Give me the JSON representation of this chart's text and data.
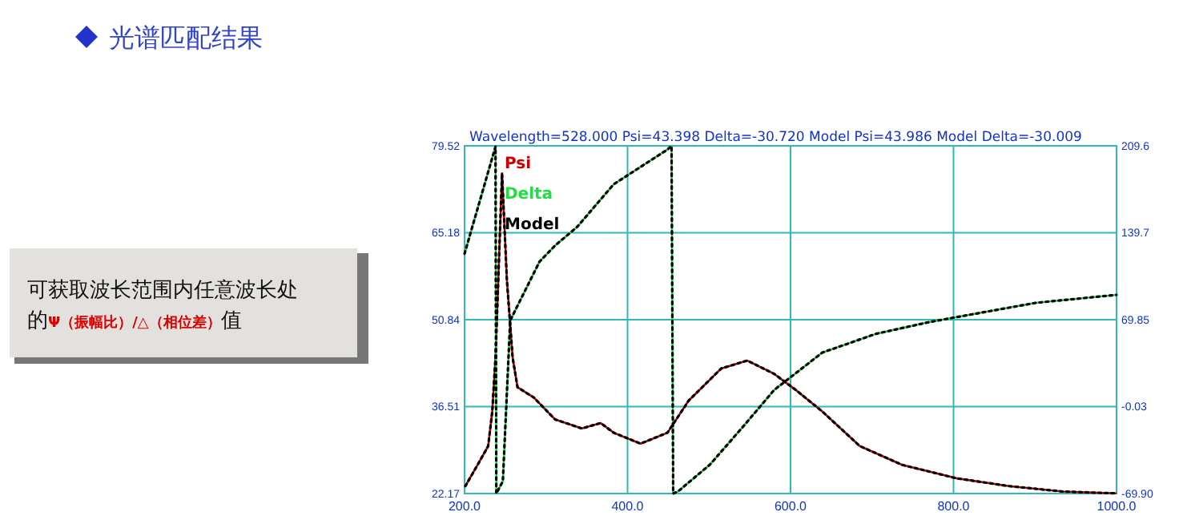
{
  "chart_data": {
    "type": "line",
    "title": "光谱匹配结果",
    "subtitle": "Wavelength=528.000  Psi=43.398  Delta=-30.720  Model Psi=43.986  Model Delta=-30.009",
    "annotations": [
      "可获取波长范围内任意波长处的",
      "Ψ（振幅比）/△（相位差）",
      "值"
    ],
    "xlim": [
      200,
      1000
    ],
    "xticks": [
      {
        "value": 200,
        "label": "200.0"
      },
      {
        "value": 400,
        "label": "400.0"
      },
      {
        "value": 600,
        "label": "600.0"
      },
      {
        "value": 800,
        "label": "800.0"
      },
      {
        "value": 1000,
        "label": "1000.0"
      }
    ],
    "ylim": [
      22.17,
      79.52
    ],
    "yticks": [
      22.17,
      36.51,
      50.84,
      65.18,
      79.52
    ],
    "y2lim": [
      -69.9,
      209.6
    ],
    "y2ticks": [
      {
        "value": -69.9,
        "label": "-69.90"
      },
      -0.03,
      69.85,
      139.7,
      209.6
    ],
    "grid": true,
    "legend": "top left",
    "marker": "none",
    "series": [
      {
        "name": "Psi",
        "color": "#cc0000",
        "x": [
          201,
          216,
          229,
          234,
          238,
          246,
          252,
          259,
          265,
          285,
          311,
          344,
          367,
          383,
          416,
          449,
          475,
          515,
          547,
          580,
          606,
          639,
          685,
          737,
          803,
          868,
          934,
          1000
        ],
        "values": [
          23.4,
          26.9,
          30.0,
          35.7,
          44.6,
          75.0,
          57.3,
          44.6,
          39.7,
          38.0,
          34.4,
          32.9,
          33.8,
          32.2,
          30.4,
          32.2,
          37.5,
          42.8,
          44.1,
          41.9,
          39.3,
          35.7,
          30.0,
          26.9,
          24.7,
          23.4,
          22.5,
          22.2
        ]
      },
      {
        "name": "Delta",
        "color": "#22dd44",
        "axis": "y2",
        "x": [
          200,
          238,
          239,
          247,
          256,
          292,
          311,
          338,
          383,
          449,
          454,
          456,
          462,
          501,
          541,
          580,
          639,
          705,
          770,
          835,
          901,
          1000
        ],
        "values": [
          122.9,
          209.0,
          -69.9,
          -60,
          69.2,
          116.5,
          129.4,
          144.3,
          178.7,
          206.6,
          209.6,
          -69.9,
          -68.2,
          -46.7,
          -16.7,
          13.4,
          43.4,
          58.5,
          67.9,
          75.6,
          83.4,
          89.8
        ]
      },
      {
        "name": "Model",
        "color": "#000000",
        "line_style": "dotted",
        "x": [
          201,
          216,
          229,
          234,
          238,
          246,
          252,
          259,
          265,
          285,
          311,
          344,
          367,
          383,
          416,
          449,
          475,
          515,
          547,
          580,
          606,
          639,
          685,
          737,
          803,
          868,
          934,
          1000
        ],
        "values": [
          23.4,
          26.9,
          30.0,
          35.7,
          44.6,
          75.0,
          57.3,
          44.6,
          39.7,
          38.0,
          34.4,
          32.9,
          33.8,
          32.2,
          30.4,
          32.2,
          37.5,
          42.8,
          44.1,
          41.9,
          39.3,
          35.7,
          30.0,
          26.9,
          24.7,
          23.4,
          22.5,
          22.2
        ]
      },
      {
        "color": "#000000",
        "line_style": "dotted",
        "axis": "y2",
        "x": [
          200,
          238,
          239,
          247,
          256,
          292,
          311,
          338,
          383,
          449,
          454,
          456,
          462,
          501,
          541,
          580,
          639,
          705,
          770,
          835,
          901,
          1000
        ],
        "values": [
          122.9,
          209.0,
          -69.9,
          -60,
          69.2,
          116.5,
          129.4,
          144.3,
          178.7,
          206.6,
          209.6,
          -69.9,
          -68.2,
          -46.7,
          -16.7,
          13.4,
          43.4,
          58.5,
          67.9,
          75.6,
          83.4,
          89.8
        ]
      }
    ]
  }
}
